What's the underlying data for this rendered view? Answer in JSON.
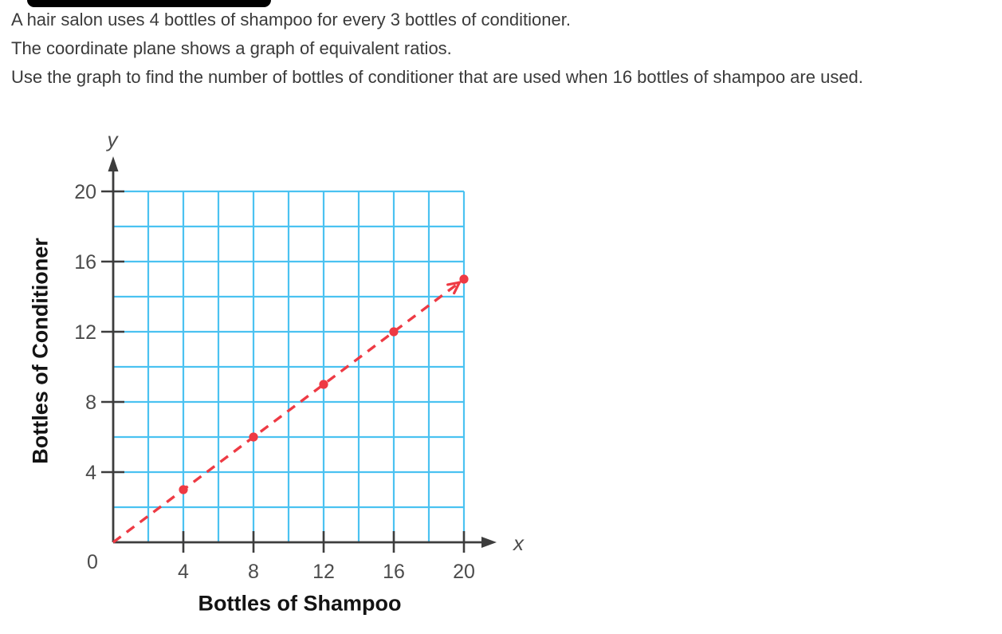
{
  "decor": {
    "top_bar_color": "#000000"
  },
  "problem": {
    "line1": "A hair salon uses 4 bottles of shampoo for every 3 bottles of conditioner.",
    "line2": "The coordinate plane shows a graph of equivalent ratios.",
    "line3": "Use the graph to find the number of bottles of conditioner that are used when 16 bottles of shampoo are used."
  },
  "chart_data": {
    "type": "scatter",
    "xlabel": "Bottles of Shampoo",
    "ylabel": "Bottles of Conditioner",
    "axis_letter_x": "x",
    "axis_letter_y": "y",
    "origin_label": "0",
    "xlim": [
      0,
      20
    ],
    "ylim": [
      0,
      20
    ],
    "grid": true,
    "grid_step": 2,
    "x_ticks": [
      4,
      8,
      12,
      16,
      20
    ],
    "y_ticks": [
      4,
      8,
      12,
      16,
      20
    ],
    "points": [
      [
        4,
        3
      ],
      [
        8,
        6
      ],
      [
        12,
        9
      ],
      [
        16,
        12
      ],
      [
        20,
        15
      ]
    ],
    "trend_line": {
      "style": "dashed",
      "from": [
        0,
        0
      ],
      "to": [
        20,
        15
      ],
      "arrowhead": true
    },
    "legend": null,
    "colors": {
      "grid": "#4bc2f1",
      "line": "#ee3a44",
      "point": "#ee3a44",
      "axis": "#3d3d3d",
      "tick_label": "#4c4c4c",
      "axis_title": "#141414",
      "body_text": "#3a3a3a"
    }
  }
}
